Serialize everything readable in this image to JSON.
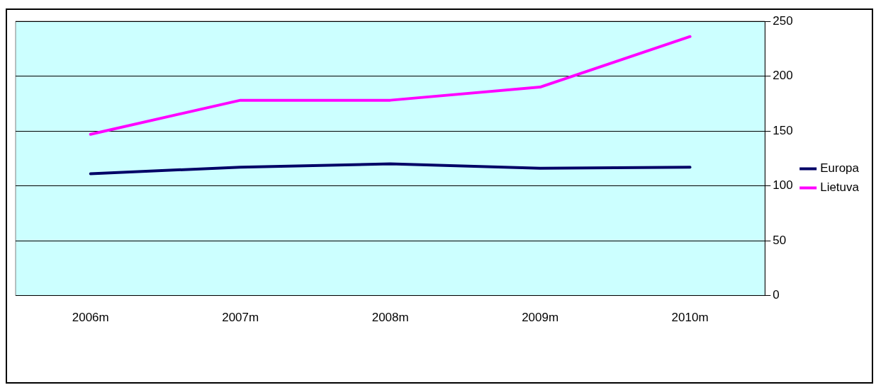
{
  "chart_data": {
    "type": "line",
    "categories": [
      "2006m",
      "2007m",
      "2008m",
      "2009m",
      "2010m"
    ],
    "series": [
      {
        "name": "Europa",
        "color": "#000066",
        "values": [
          111,
          117,
          120,
          116,
          117
        ]
      },
      {
        "name": "Lietuva",
        "color": "#ff00ff",
        "values": [
          147,
          178,
          178,
          190,
          236
        ]
      }
    ],
    "ylim": [
      0,
      250
    ],
    "yticks": [
      0,
      50,
      100,
      150,
      200,
      250
    ],
    "grid": "y",
    "legend": "right",
    "marker": "none",
    "line_style": "solid"
  }
}
